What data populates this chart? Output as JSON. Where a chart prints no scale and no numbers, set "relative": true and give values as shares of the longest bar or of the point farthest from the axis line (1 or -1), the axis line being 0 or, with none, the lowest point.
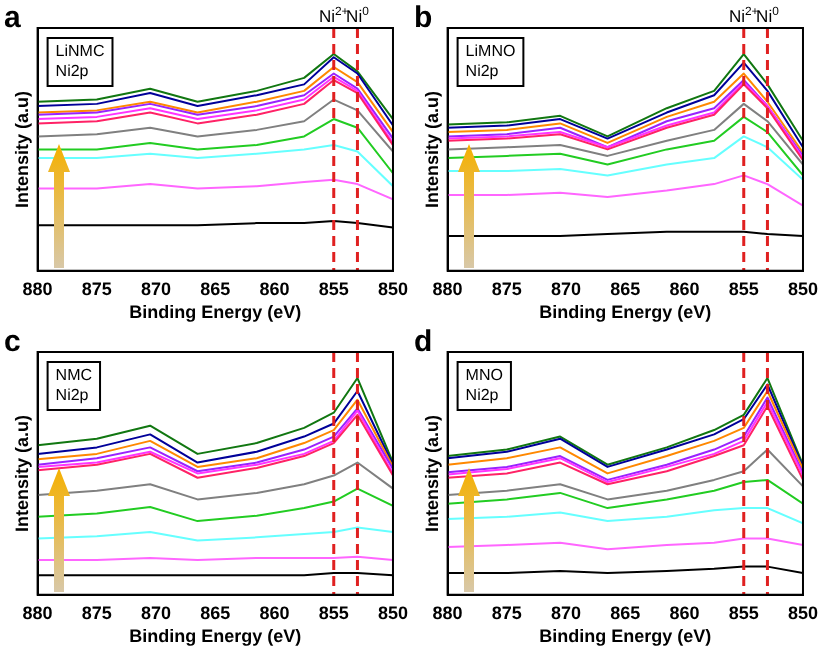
{
  "chart_data": [
    {
      "type": "line",
      "title": "a",
      "annotations": [
        "LiNMC",
        "Ni2p"
      ],
      "xlabel": "Binding Energy (eV)",
      "ylabel": "Intensity (a.u)",
      "relative": true,
      "x": [
        880,
        875,
        870.5,
        866.5,
        861.5,
        857.5,
        855,
        853,
        850
      ],
      "xlim": [
        880,
        850
      ],
      "xticks": [
        880,
        875,
        870,
        865,
        860,
        855,
        850
      ],
      "tick_labels": "x",
      "grid": false,
      "legend": false,
      "marker": "none",
      "line_style": "solid",
      "ref_lines": [
        {
          "axis": "x",
          "value": 855,
          "label": "Ni$^{2+}$",
          "color": "#e02020",
          "line_style": "dashed"
        },
        {
          "axis": "x",
          "value": 853,
          "label": "Ni$^{0}$",
          "color": "#e02020",
          "line_style": "dashed"
        }
      ],
      "series": [
        {
          "color": "#000000",
          "values": [
            0.21,
            0.21,
            0.21,
            0.21,
            0.22,
            0.22,
            0.23,
            0.22,
            0.2
          ]
        },
        {
          "color": "#ff66ff",
          "values": [
            0.38,
            0.38,
            0.4,
            0.38,
            0.39,
            0.41,
            0.42,
            0.4,
            0.33
          ]
        },
        {
          "color": "#66ffff",
          "values": [
            0.52,
            0.52,
            0.54,
            0.52,
            0.54,
            0.56,
            0.58,
            0.55,
            0.39
          ]
        },
        {
          "color": "#22cc22",
          "values": [
            0.56,
            0.56,
            0.59,
            0.56,
            0.58,
            0.62,
            0.7,
            0.66,
            0.45
          ]
        },
        {
          "color": "#808080",
          "values": [
            0.62,
            0.63,
            0.66,
            0.62,
            0.65,
            0.69,
            0.79,
            0.74,
            0.55
          ]
        },
        {
          "color": "#ff2266",
          "values": [
            0.68,
            0.69,
            0.73,
            0.68,
            0.72,
            0.77,
            0.88,
            0.82,
            0.58
          ]
        },
        {
          "color": "#ff33ff",
          "values": [
            0.7,
            0.71,
            0.75,
            0.7,
            0.74,
            0.79,
            0.895,
            0.83,
            0.59
          ]
        },
        {
          "color": "#9922ff",
          "values": [
            0.72,
            0.73,
            0.77,
            0.72,
            0.76,
            0.81,
            0.91,
            0.84,
            0.61
          ]
        },
        {
          "color": "#ff8800",
          "values": [
            0.73,
            0.74,
            0.78,
            0.73,
            0.78,
            0.83,
            0.94,
            0.87,
            0.64
          ]
        },
        {
          "color": "#000099",
          "values": [
            0.76,
            0.77,
            0.82,
            0.76,
            0.81,
            0.86,
            0.985,
            0.91,
            0.67
          ]
        },
        {
          "color": "#117711",
          "values": [
            0.78,
            0.79,
            0.84,
            0.78,
            0.83,
            0.89,
            1,
            0.92,
            0.7
          ]
        }
      ]
    },
    {
      "type": "line",
      "title": "b",
      "annotations": [
        "LiMNO",
        "Ni2p"
      ],
      "xlabel": "Binding Energy (eV)",
      "ylabel": "Intensity (a.u)",
      "relative": true,
      "x": [
        880,
        875,
        870.5,
        866.5,
        861.5,
        857.5,
        855,
        853,
        850
      ],
      "xlim": [
        880,
        850
      ],
      "xticks": [
        880,
        875,
        870,
        865,
        860,
        855,
        850
      ],
      "tick_labels": "x",
      "grid": false,
      "legend": false,
      "marker": "none",
      "line_style": "solid",
      "ref_lines": [
        {
          "axis": "x",
          "value": 855,
          "label": "Ni$^{2+}$",
          "color": "#e02020",
          "line_style": "dashed"
        },
        {
          "axis": "x",
          "value": 853,
          "label": "Ni$^{0}$",
          "color": "#e02020",
          "line_style": "dashed"
        }
      ],
      "series": [
        {
          "color": "#000000",
          "values": [
            0.16,
            0.16,
            0.16,
            0.17,
            0.18,
            0.18,
            0.18,
            0.17,
            0.16
          ]
        },
        {
          "color": "#ff66ff",
          "values": [
            0.35,
            0.35,
            0.36,
            0.34,
            0.37,
            0.4,
            0.44,
            0.4,
            0.3
          ]
        },
        {
          "color": "#66ffff",
          "values": [
            0.46,
            0.46,
            0.47,
            0.44,
            0.49,
            0.52,
            0.62,
            0.57,
            0.42
          ]
        },
        {
          "color": "#22cc22",
          "values": [
            0.52,
            0.53,
            0.54,
            0.49,
            0.56,
            0.6,
            0.71,
            0.64,
            0.44
          ]
        },
        {
          "color": "#808080",
          "values": [
            0.56,
            0.57,
            0.58,
            0.53,
            0.6,
            0.65,
            0.77,
            0.69,
            0.49
          ]
        },
        {
          "color": "#ff2266",
          "values": [
            0.6,
            0.61,
            0.63,
            0.56,
            0.66,
            0.72,
            0.86,
            0.75,
            0.51
          ]
        },
        {
          "color": "#ff33ff",
          "values": [
            0.61,
            0.62,
            0.64,
            0.57,
            0.67,
            0.73,
            0.87,
            0.76,
            0.52
          ]
        },
        {
          "color": "#9922ff",
          "values": [
            0.62,
            0.63,
            0.66,
            0.57,
            0.69,
            0.75,
            0.88,
            0.76,
            0.53
          ]
        },
        {
          "color": "#ff8800",
          "values": [
            0.64,
            0.65,
            0.68,
            0.59,
            0.71,
            0.78,
            0.91,
            0.78,
            0.545
          ]
        },
        {
          "color": "#000099",
          "values": [
            0.66,
            0.67,
            0.7,
            0.61,
            0.73,
            0.81,
            0.96,
            0.83,
            0.57
          ]
        },
        {
          "color": "#117711",
          "values": [
            0.675,
            0.685,
            0.715,
            0.62,
            0.75,
            0.83,
            1,
            0.86,
            0.6
          ]
        }
      ]
    },
    {
      "type": "line",
      "title": "c",
      "annotations": [
        "NMC",
        "Ni2p"
      ],
      "xlabel": "Binding Energy (eV)",
      "ylabel": "Intensity (a.u)",
      "relative": true,
      "x": [
        880,
        875,
        870.5,
        866.5,
        861.5,
        857.5,
        855,
        853,
        850
      ],
      "xlim": [
        880,
        850
      ],
      "xticks": [
        880,
        875,
        870,
        865,
        860,
        855,
        850
      ],
      "tick_labels": "x",
      "grid": false,
      "legend": false,
      "marker": "none",
      "line_style": "solid",
      "ref_lines": [
        {
          "axis": "x",
          "value": 855,
          "color": "#e02020",
          "line_style": "dashed"
        },
        {
          "axis": "x",
          "value": 853,
          "color": "#e02020",
          "line_style": "dashed"
        }
      ],
      "series": [
        {
          "color": "#000000",
          "values": [
            0.09,
            0.09,
            0.09,
            0.09,
            0.09,
            0.09,
            0.1,
            0.1,
            0.09
          ]
        },
        {
          "color": "#ff66ff",
          "values": [
            0.16,
            0.16,
            0.17,
            0.16,
            0.17,
            0.17,
            0.17,
            0.175,
            0.16
          ]
        },
        {
          "color": "#66ffff",
          "values": [
            0.26,
            0.27,
            0.29,
            0.25,
            0.265,
            0.28,
            0.29,
            0.31,
            0.29
          ]
        },
        {
          "color": "#22cc22",
          "values": [
            0.36,
            0.375,
            0.405,
            0.34,
            0.365,
            0.4,
            0.43,
            0.49,
            0.41
          ]
        },
        {
          "color": "#808080",
          "values": [
            0.46,
            0.48,
            0.51,
            0.44,
            0.47,
            0.51,
            0.55,
            0.61,
            0.49
          ]
        },
        {
          "color": "#ff2266",
          "values": [
            0.575,
            0.6,
            0.65,
            0.54,
            0.585,
            0.64,
            0.7,
            0.83,
            0.55
          ]
        },
        {
          "color": "#ff33ff",
          "values": [
            0.59,
            0.61,
            0.66,
            0.56,
            0.6,
            0.65,
            0.71,
            0.85,
            0.56
          ]
        },
        {
          "color": "#9922ff",
          "values": [
            0.6,
            0.63,
            0.68,
            0.57,
            0.61,
            0.67,
            0.73,
            0.86,
            0.58
          ]
        },
        {
          "color": "#ff8800",
          "values": [
            0.625,
            0.65,
            0.71,
            0.59,
            0.63,
            0.7,
            0.76,
            0.9,
            0.59
          ]
        },
        {
          "color": "#000099",
          "values": [
            0.65,
            0.68,
            0.74,
            0.61,
            0.66,
            0.73,
            0.79,
            0.94,
            0.6
          ]
        },
        {
          "color": "#117711",
          "values": [
            0.69,
            0.72,
            0.78,
            0.65,
            0.7,
            0.77,
            0.84,
            1,
            0.61
          ]
        }
      ]
    },
    {
      "type": "line",
      "title": "d",
      "annotations": [
        "MNO",
        "Ni2p"
      ],
      "xlabel": "Binding Energy (eV)",
      "ylabel": "Intensity (a.u)",
      "relative": true,
      "x": [
        880,
        875,
        870.5,
        866.5,
        861.5,
        857.5,
        855,
        853,
        850
      ],
      "xlim": [
        880,
        850
      ],
      "xticks": [
        880,
        875,
        870,
        865,
        860,
        855,
        850
      ],
      "tick_labels": "x",
      "grid": false,
      "legend": false,
      "marker": "none",
      "line_style": "solid",
      "ref_lines": [
        {
          "axis": "x",
          "value": 855,
          "color": "#e02020",
          "line_style": "dashed"
        },
        {
          "axis": "x",
          "value": 853,
          "color": "#e02020",
          "line_style": "dashed"
        }
      ],
      "series": [
        {
          "color": "#000000",
          "values": [
            0.1,
            0.1,
            0.11,
            0.1,
            0.11,
            0.12,
            0.13,
            0.13,
            0.1
          ]
        },
        {
          "color": "#ff66ff",
          "values": [
            0.22,
            0.23,
            0.24,
            0.21,
            0.23,
            0.24,
            0.26,
            0.26,
            0.23
          ]
        },
        {
          "color": "#66ffff",
          "values": [
            0.35,
            0.36,
            0.38,
            0.34,
            0.36,
            0.39,
            0.4,
            0.4,
            0.33
          ]
        },
        {
          "color": "#22cc22",
          "values": [
            0.42,
            0.44,
            0.47,
            0.4,
            0.44,
            0.48,
            0.52,
            0.53,
            0.42
          ]
        },
        {
          "color": "#808080",
          "values": [
            0.46,
            0.48,
            0.51,
            0.44,
            0.48,
            0.53,
            0.57,
            0.67,
            0.5
          ]
        },
        {
          "color": "#ff2266",
          "values": [
            0.54,
            0.56,
            0.61,
            0.51,
            0.57,
            0.64,
            0.69,
            0.87,
            0.53
          ]
        },
        {
          "color": "#ff33ff",
          "values": [
            0.555,
            0.58,
            0.63,
            0.52,
            0.59,
            0.65,
            0.71,
            0.89,
            0.55
          ]
        },
        {
          "color": "#9922ff",
          "values": [
            0.565,
            0.59,
            0.64,
            0.53,
            0.6,
            0.67,
            0.73,
            0.91,
            0.56
          ]
        },
        {
          "color": "#ff8800",
          "values": [
            0.6,
            0.63,
            0.68,
            0.56,
            0.64,
            0.71,
            0.77,
            0.94,
            0.58
          ]
        },
        {
          "color": "#000099",
          "values": [
            0.63,
            0.66,
            0.72,
            0.59,
            0.67,
            0.74,
            0.81,
            0.97,
            0.59
          ]
        },
        {
          "color": "#117711",
          "values": [
            0.64,
            0.67,
            0.73,
            0.6,
            0.68,
            0.76,
            0.83,
            1,
            0.6
          ]
        }
      ]
    }
  ]
}
